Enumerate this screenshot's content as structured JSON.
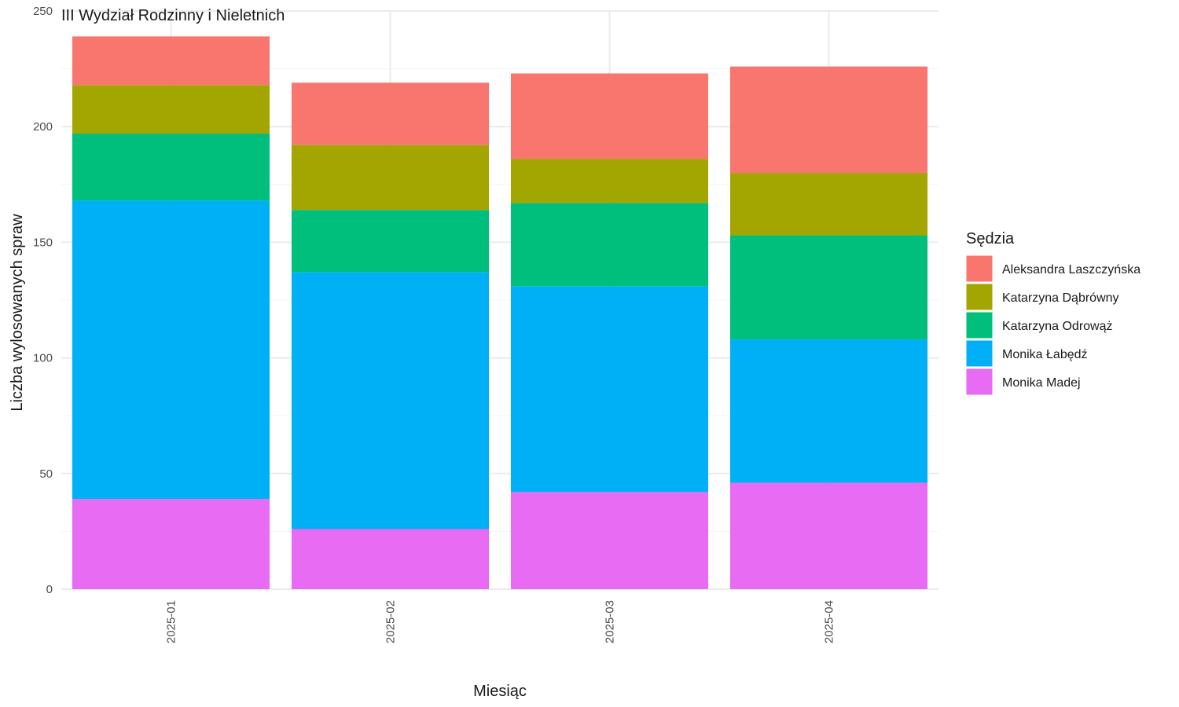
{
  "chart_data": {
    "type": "bar",
    "stacked": true,
    "title": "III Wydział Rodzinny i Nieletnich",
    "xlabel": "Miesiąc",
    "ylabel": "Liczba wylosowanych spraw",
    "categories": [
      "2025-01",
      "2025-02",
      "2025-03",
      "2025-04"
    ],
    "ylim": [
      0,
      250
    ],
    "yticks": [
      0,
      50,
      100,
      150,
      200,
      250
    ],
    "grid": true,
    "legend": {
      "title": "Sędzia",
      "position": "right"
    },
    "series": [
      {
        "name": "Aleksandra Laszczyńska",
        "color": "#F8766D",
        "values": [
          21,
          27,
          37,
          46
        ]
      },
      {
        "name": "Katarzyna Dąbrówny",
        "color": "#A3A500",
        "values": [
          21,
          28,
          19,
          27
        ]
      },
      {
        "name": "Katarzyna Odrowąż",
        "color": "#00BF7D",
        "values": [
          29,
          27,
          36,
          45
        ]
      },
      {
        "name": "Monika Łabędź",
        "color": "#00B0F6",
        "values": [
          129,
          111,
          89,
          62
        ]
      },
      {
        "name": "Monika Madej",
        "color": "#E76BF3",
        "values": [
          39,
          26,
          42,
          46
        ]
      }
    ]
  }
}
